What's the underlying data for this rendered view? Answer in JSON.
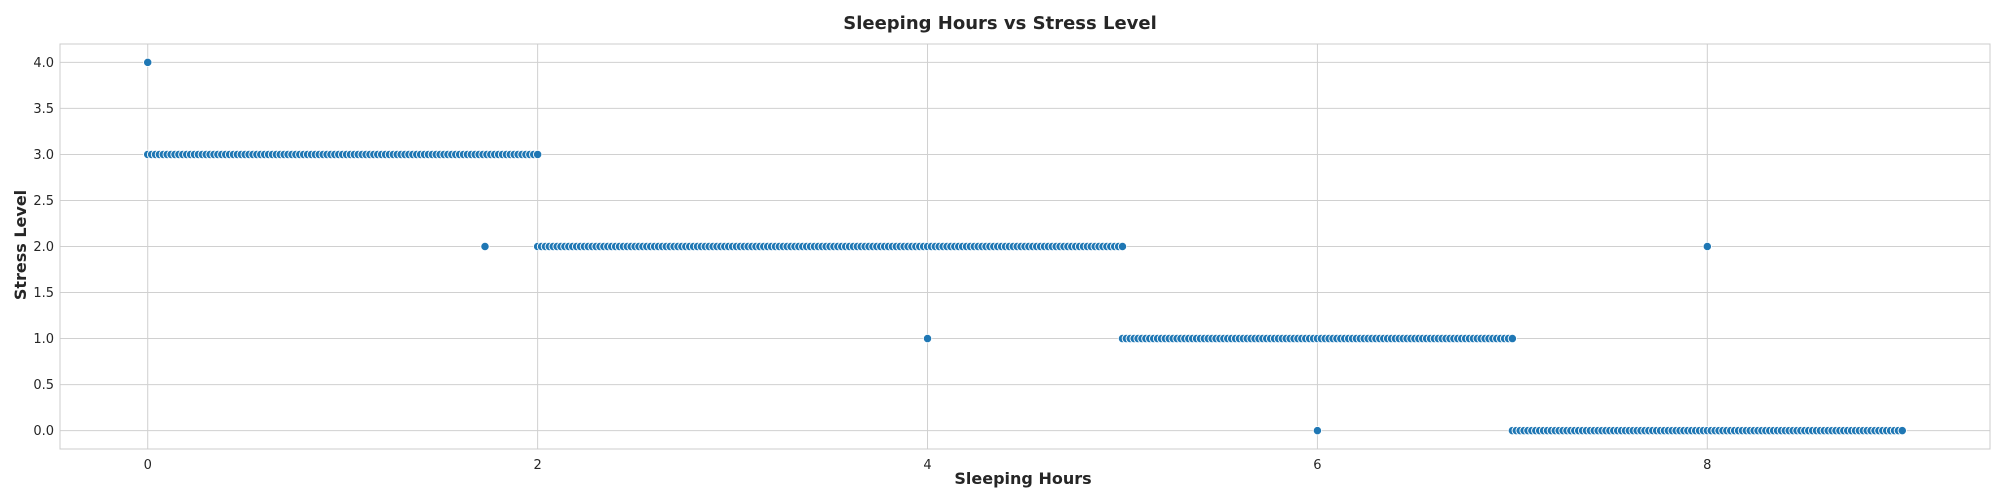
{
  "chart_data": {
    "type": "scatter",
    "title": "Sleeping Hours vs Stress Level",
    "xlabel": "Sleeping Hours",
    "ylabel": "Stress Level",
    "xlim": [
      -0.45,
      9.45
    ],
    "ylim": [
      -0.2,
      4.2
    ],
    "xticks": [
      0,
      2,
      4,
      6,
      8
    ],
    "xtick_labels": [
      "0",
      "2",
      "4",
      "6",
      "8"
    ],
    "yticks": [
      0.0,
      0.5,
      1.0,
      1.5,
      2.0,
      2.5,
      3.0,
      3.5,
      4.0
    ],
    "ytick_labels": [
      "0.0",
      "0.5",
      "1.0",
      "1.5",
      "2.0",
      "2.5",
      "3.0",
      "3.5",
      "4.0"
    ],
    "grid": true,
    "marker_color": "#1f77b4",
    "series": [
      {
        "points": [
          [
            0.0,
            4.0
          ],
          [
            1.73,
            2.0
          ],
          [
            4.0,
            1.0
          ],
          [
            6.0,
            0.0
          ],
          [
            8.0,
            2.0
          ]
        ],
        "bands": [
          {
            "x_from": 0.0,
            "x_to": 2.0,
            "y": 3.0
          },
          {
            "x_from": 2.0,
            "x_to": 5.0,
            "y": 2.0
          },
          {
            "x_from": 5.0,
            "x_to": 7.0,
            "y": 1.0
          },
          {
            "x_from": 7.0,
            "x_to": 9.0,
            "y": 0.0
          }
        ]
      }
    ]
  }
}
